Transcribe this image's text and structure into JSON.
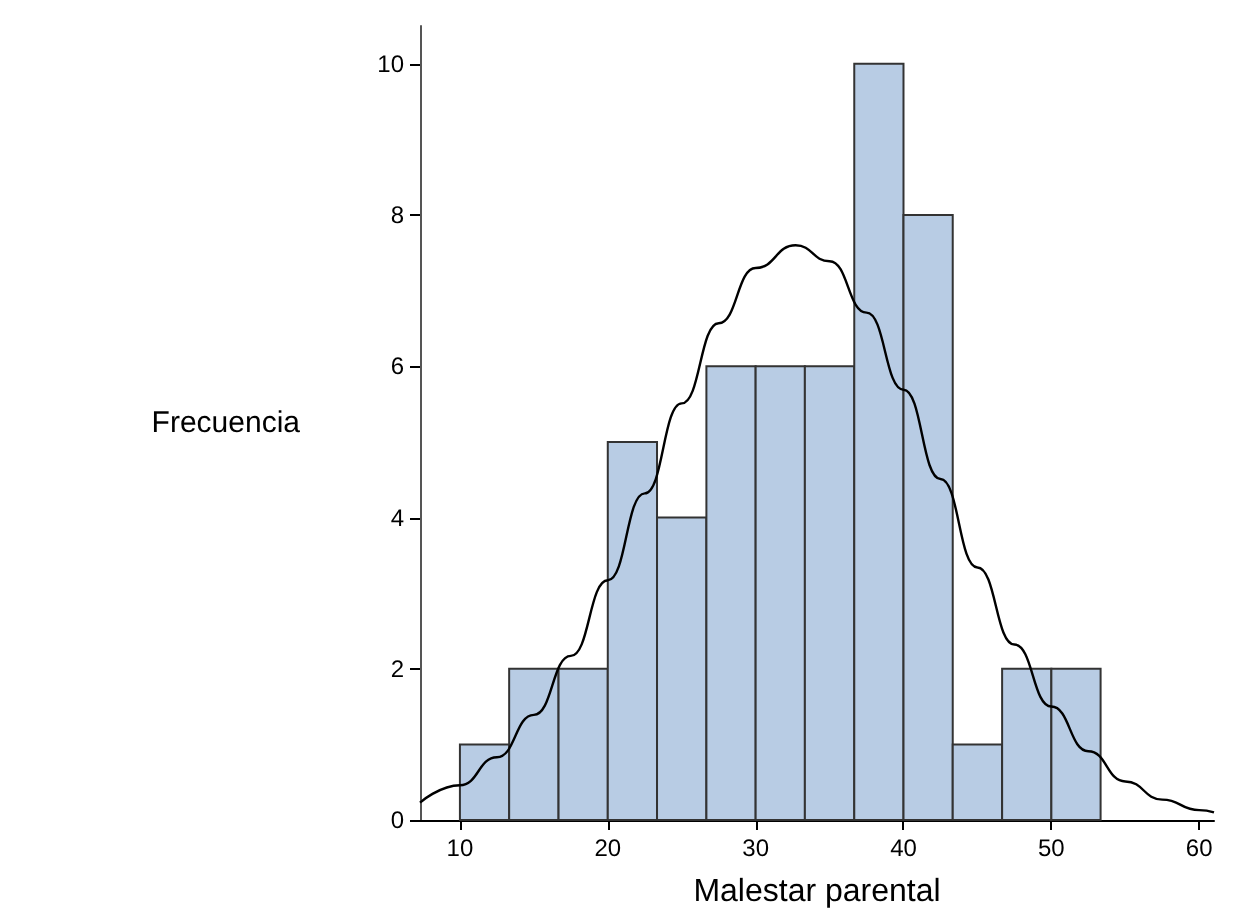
{
  "chart_data": {
    "type": "histogram",
    "xlabel": "Malestar parental",
    "ylabel": "Frecuencia",
    "bins": [
      10,
      13.33,
      16.67,
      20,
      23.33,
      26.67,
      30,
      33.33,
      36.67,
      40,
      43.33,
      46.67,
      50,
      53.33
    ],
    "values": [
      1,
      2,
      2,
      5,
      4,
      6,
      6,
      6,
      10,
      8,
      1,
      2,
      2
    ],
    "color": "#b8cce4",
    "series": [
      {
        "type": "line",
        "color": "#000000",
        "x": [
          7.3,
          10,
          12.5,
          15,
          17.5,
          20,
          22.5,
          25,
          27.5,
          30,
          32.7,
          35,
          37.5,
          40,
          42.5,
          45,
          47.5,
          50,
          52.5,
          55,
          57.5,
          60,
          61
        ],
        "values": [
          0.23,
          0.46,
          0.83,
          1.39,
          2.17,
          3.17,
          4.32,
          5.51,
          6.57,
          7.3,
          7.6,
          7.39,
          6.71,
          5.69,
          4.51,
          3.34,
          2.32,
          1.5,
          0.91,
          0.51,
          0.27,
          0.13,
          0.1
        ]
      }
    ],
    "xlim": [
      7.3,
      61
    ],
    "xticks": [
      10,
      20,
      30,
      40,
      50,
      60
    ],
    "ylim": [
      0,
      10.5
    ],
    "yticks": [
      0,
      2,
      4,
      6,
      8,
      10
    ],
    "grid": false,
    "marker": "none",
    "line_style": "solid"
  }
}
